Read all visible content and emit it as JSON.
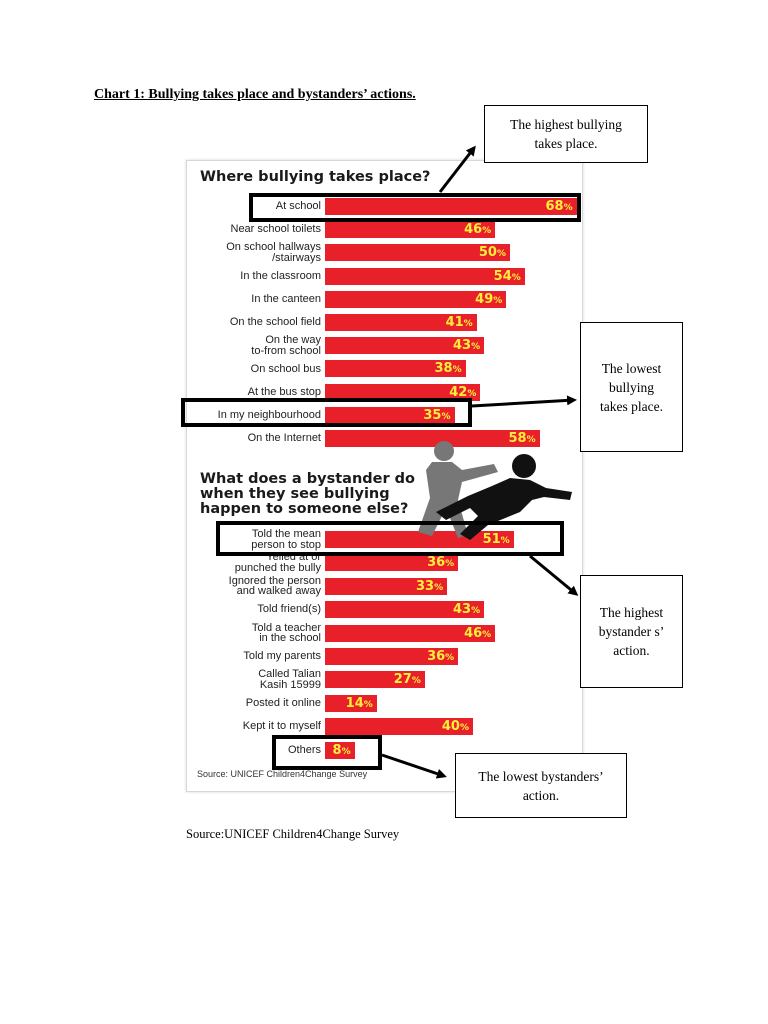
{
  "caption": "Chart 1: Bullying takes place and bystanders’ actions.",
  "chart_data": [
    {
      "type": "bar",
      "title": "Where bullying takes place?",
      "categories": [
        "At school",
        "Near school toilets",
        "On school hallways\n/stairways",
        "In the classroom",
        "In the canteen",
        "On the school field",
        "On the way\nto-from school",
        "On school bus",
        "At the bus stop",
        "In my neighbourhood",
        "On the Internet"
      ],
      "values": [
        68,
        46,
        50,
        54,
        49,
        41,
        43,
        38,
        42,
        35,
        58
      ],
      "value_suffix": "%",
      "orientation": "horizontal",
      "bar_color": "#e8202a",
      "label_color": "#ffef3a"
    },
    {
      "type": "bar",
      "title": "What does a bystander do\nwhen they see bullying\nhappen to someone else?",
      "categories": [
        "Told the mean\nperson to stop",
        "Yelled at or\npunched the bully",
        "Ignored the person\nand walked away",
        "Told friend(s)",
        "Told a teacher\nin the school",
        "Told my parents",
        "Called Talian\nKasih 15999",
        "Posted it online",
        "Kept it to myself",
        "Others"
      ],
      "values": [
        51,
        36,
        33,
        43,
        46,
        36,
        27,
        14,
        40,
        8
      ],
      "value_suffix": "%",
      "orientation": "horizontal",
      "bar_color": "#e8202a",
      "label_color": "#ffef3a"
    }
  ],
  "chart_source": "Source: UNICEF Children4Change Survey",
  "notes": {
    "highest_place": "The highest bullying\ntakes place.",
    "lowest_place": "The lowest\nbullying\ntakes place.",
    "highest_action": "The highest\nbystander s’\naction.",
    "lowest_action": "The lowest bystanders’\naction."
  },
  "source_text": "Source:UNICEF Children4Change Survey"
}
